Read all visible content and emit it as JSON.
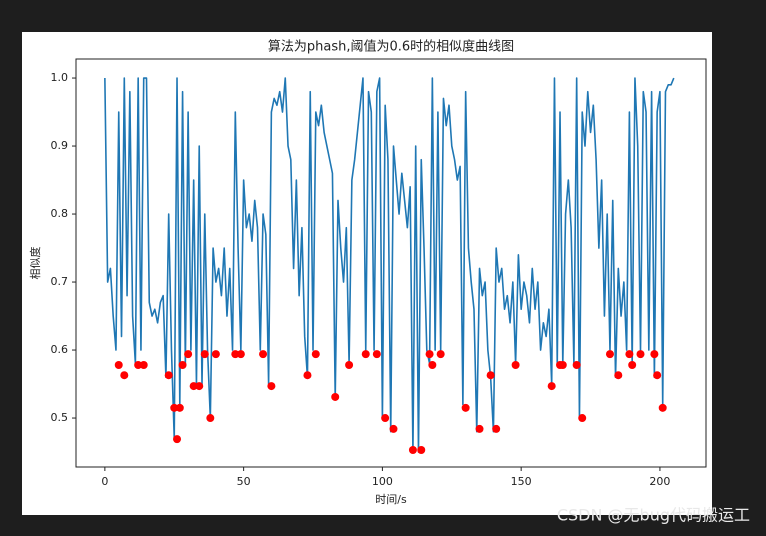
{
  "chart_data": {
    "type": "line",
    "title": "算法为phash,阈值为0.6时的相似度曲线图",
    "xlabel": "时间/s",
    "ylabel": "相似度",
    "xlim": [
      -10.4,
      216.6
    ],
    "ylim": [
      0.428,
      1.028
    ],
    "xticks": [
      0,
      50,
      100,
      150,
      200
    ],
    "yticks": [
      0.5,
      0.6,
      0.7,
      0.8,
      0.9,
      {
        "value": 1,
        "label": "1.0"
      }
    ],
    "series": [
      {
        "color": "#1f77b4",
        "x": [
          0,
          1,
          2,
          3,
          4,
          5,
          6,
          7,
          8,
          9,
          10,
          11,
          12,
          13,
          14,
          15,
          16,
          17,
          18,
          19,
          20,
          21,
          22,
          23,
          24,
          25,
          26,
          27,
          28,
          29,
          30,
          31,
          32,
          33,
          34,
          35,
          36,
          37,
          38,
          39,
          40,
          41,
          42,
          43,
          44,
          45,
          46,
          47,
          48,
          49,
          50,
          51,
          52,
          53,
          54,
          55,
          56,
          57,
          58,
          59,
          60,
          61,
          62,
          63,
          64,
          65,
          66,
          67,
          68,
          69,
          70,
          71,
          72,
          73,
          74,
          75,
          76,
          77,
          78,
          79,
          80,
          81,
          82,
          83,
          84,
          85,
          86,
          87,
          88,
          89,
          90,
          91,
          92,
          93,
          94,
          95,
          96,
          97,
          98,
          99,
          100,
          101,
          102,
          103,
          104,
          105,
          106,
          107,
          108,
          109,
          110,
          111,
          112,
          113,
          114,
          115,
          116,
          117,
          118,
          119,
          120,
          121,
          122,
          123,
          124,
          125,
          126,
          127,
          128,
          129,
          130,
          131,
          132,
          133,
          134,
          135,
          136,
          137,
          138,
          139,
          140,
          141,
          142,
          143,
          144,
          145,
          146,
          147,
          148,
          149,
          150,
          151,
          152,
          153,
          154,
          155,
          156,
          157,
          158,
          159,
          160,
          161,
          162,
          163,
          164,
          165,
          166,
          167,
          168,
          169,
          170,
          171,
          172,
          173,
          174,
          175,
          176,
          177,
          178,
          179,
          180,
          181,
          182,
          183,
          184,
          185,
          186,
          187,
          188,
          189,
          190,
          191,
          192,
          193,
          194,
          195,
          196,
          197,
          198,
          199,
          200,
          201,
          202,
          203,
          204,
          205
        ],
        "values": [
          1.0,
          0.7,
          0.72,
          0.65,
          0.6,
          0.95,
          0.62,
          1.0,
          0.68,
          0.98,
          0.65,
          0.58,
          1.0,
          0.6,
          1.0,
          1.0,
          0.67,
          0.65,
          0.66,
          0.64,
          0.67,
          0.68,
          0.56,
          0.8,
          0.6,
          0.47,
          1.0,
          0.52,
          0.98,
          0.58,
          0.95,
          0.6,
          0.85,
          0.55,
          0.9,
          0.55,
          0.8,
          0.6,
          0.5,
          0.75,
          0.7,
          0.72,
          0.68,
          0.75,
          0.65,
          0.72,
          0.6,
          0.95,
          0.75,
          0.6,
          0.85,
          0.78,
          0.8,
          0.76,
          0.82,
          0.78,
          0.6,
          0.8,
          0.77,
          0.55,
          0.95,
          0.97,
          0.96,
          0.98,
          0.95,
          1.0,
          0.9,
          0.88,
          0.72,
          0.85,
          0.68,
          0.78,
          0.62,
          0.56,
          0.98,
          0.6,
          0.95,
          0.93,
          0.96,
          0.92,
          0.9,
          0.88,
          0.86,
          0.53,
          0.82,
          0.75,
          0.7,
          0.78,
          0.58,
          0.85,
          0.88,
          0.92,
          0.96,
          1.0,
          0.6,
          0.98,
          0.95,
          0.6,
          0.98,
          1.0,
          0.5,
          0.96,
          0.88,
          0.48,
          0.9,
          0.85,
          0.8,
          0.86,
          0.82,
          0.78,
          0.84,
          0.45,
          0.9,
          0.45,
          0.88,
          0.75,
          0.6,
          0.58,
          1.0,
          0.6,
          0.95,
          0.6,
          0.97,
          0.93,
          0.96,
          0.9,
          0.88,
          0.85,
          0.87,
          0.52,
          0.98,
          0.75,
          0.7,
          0.66,
          0.48,
          0.72,
          0.68,
          0.7,
          0.6,
          0.56,
          0.48,
          0.75,
          0.7,
          0.72,
          0.66,
          0.68,
          0.64,
          0.7,
          0.58,
          0.74,
          0.66,
          0.7,
          0.68,
          0.64,
          0.72,
          0.66,
          0.7,
          0.6,
          0.64,
          0.62,
          0.66,
          0.55,
          1.0,
          0.58,
          0.95,
          0.58,
          0.8,
          0.85,
          0.78,
          0.58,
          1.0,
          0.5,
          0.95,
          0.9,
          0.98,
          0.92,
          0.96,
          0.88,
          0.75,
          0.85,
          0.65,
          0.8,
          0.6,
          0.82,
          0.56,
          0.72,
          0.65,
          0.7,
          0.6,
          0.95,
          0.58,
          1.0,
          0.9,
          0.6,
          0.98,
          0.95,
          0.6,
          0.98,
          0.56,
          0.95,
          0.98,
          0.52,
          0.98,
          0.99,
          0.99,
          1.0
        ]
      },
      {
        "color": "#ff0000",
        "marker": "o",
        "x": [
          5,
          7,
          12,
          14,
          23,
          25,
          26,
          27,
          28,
          30,
          32,
          34,
          36,
          38,
          40,
          47,
          49,
          57,
          60,
          73,
          76,
          83,
          88,
          94,
          98,
          101,
          104,
          111,
          114,
          117,
          118,
          121,
          130,
          135,
          139,
          141,
          148,
          161,
          164,
          165,
          170,
          172,
          182,
          185,
          189,
          190,
          193,
          198,
          199,
          201
        ],
        "values": [
          0.578,
          0.563,
          0.578,
          0.578,
          0.563,
          0.515,
          0.469,
          0.515,
          0.578,
          0.594,
          0.547,
          0.547,
          0.594,
          0.5,
          0.594,
          0.594,
          0.594,
          0.594,
          0.547,
          0.563,
          0.594,
          0.531,
          0.578,
          0.594,
          0.594,
          0.5,
          0.484,
          0.453,
          0.453,
          0.594,
          0.578,
          0.594,
          0.515,
          0.484,
          0.563,
          0.484,
          0.578,
          0.547,
          0.578,
          0.578,
          0.578,
          0.5,
          0.594,
          0.563,
          0.594,
          0.578,
          0.594,
          0.594,
          0.563,
          0.515
        ]
      }
    ]
  },
  "watermark": "CSDN @无bug代码搬运工"
}
